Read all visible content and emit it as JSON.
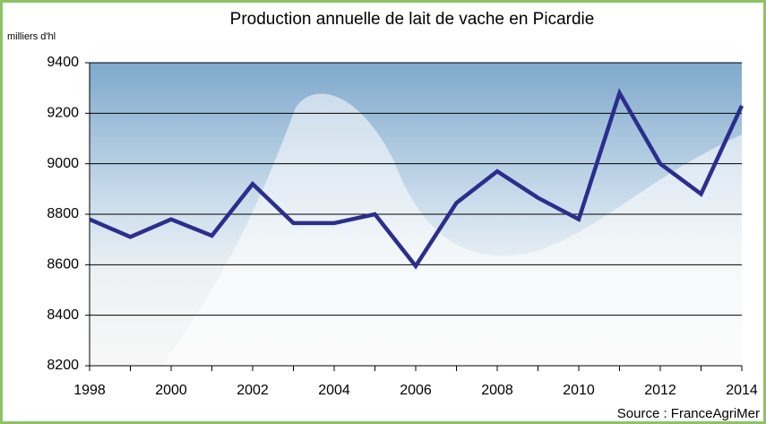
{
  "chart_data": {
    "type": "line",
    "title": "Production annuelle de lait de vache en Picardie",
    "y_label": "milliers d'hl",
    "source": "Source : FranceAgriMer",
    "x": [
      1998,
      1999,
      2000,
      2001,
      2002,
      2003,
      2004,
      2005,
      2006,
      2007,
      2008,
      2009,
      2010,
      2011,
      2012,
      2013,
      2014
    ],
    "series": [
      {
        "name": "Production",
        "color": "#2b2e8c",
        "values": [
          8780,
          8710,
          8780,
          8715,
          8920,
          8765,
          8765,
          8800,
          8595,
          8845,
          8970,
          8865,
          8780,
          9280,
          9000,
          8880,
          9230
        ]
      }
    ],
    "xlim": [
      1998,
      2014
    ],
    "xticks": [
      1998,
      2000,
      2002,
      2004,
      2006,
      2008,
      2010,
      2012,
      2014
    ],
    "ylim": [
      8200,
      9400
    ],
    "yticks": [
      8200,
      8400,
      8600,
      8800,
      9000,
      9200,
      9400
    ],
    "grid": true
  }
}
